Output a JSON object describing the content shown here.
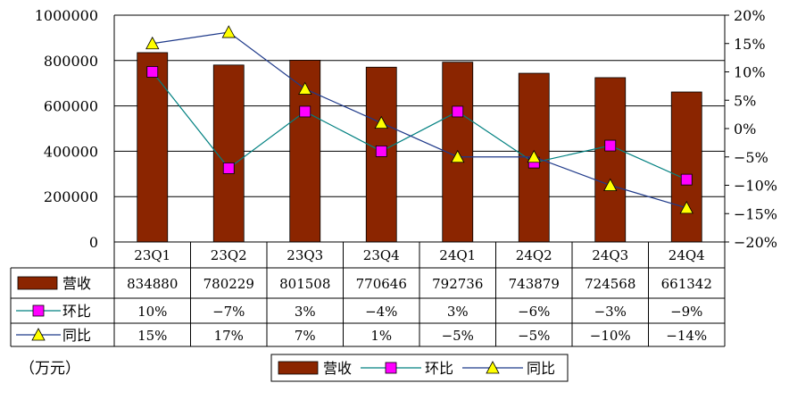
{
  "chart_data": {
    "type": "bar",
    "categories": [
      "23Q1",
      "23Q2",
      "23Q3",
      "23Q4",
      "24Q1",
      "24Q2",
      "24Q3",
      "24Q4"
    ],
    "series": [
      {
        "name": "营收",
        "kind": "bar",
        "axis": "left",
        "color": "#8B2500",
        "values": [
          834880,
          780229,
          801508,
          770646,
          792736,
          743879,
          724568,
          661342
        ],
        "labels": [
          "834880",
          "780229",
          "801508",
          "770646",
          "792736",
          "743879",
          "724568",
          "661342"
        ]
      },
      {
        "name": "环比",
        "kind": "line",
        "axis": "right",
        "color": "#008080",
        "marker_color": "#FF00FF",
        "marker": "square",
        "values": [
          10,
          -7,
          3,
          -4,
          3,
          -6,
          -3,
          -9
        ],
        "labels": [
          "10%",
          "−7%",
          "3%",
          "−4%",
          "3%",
          "−6%",
          "−3%",
          "−9%"
        ]
      },
      {
        "name": "同比",
        "kind": "line",
        "axis": "right",
        "color": "#1F3A8A",
        "marker_color": "#FFFF00",
        "marker": "triangle",
        "values": [
          15,
          17,
          7,
          1,
          -5,
          -5,
          -10,
          -14
        ],
        "labels": [
          "15%",
          "17%",
          "7%",
          "1%",
          "−5%",
          "−5%",
          "−10%",
          "−14%"
        ]
      }
    ],
    "left_axis": {
      "min": 0,
      "max": 1000000,
      "ticks": [
        "1000000",
        "800000",
        "600000",
        "400000",
        "200000",
        "0"
      ]
    },
    "right_axis": {
      "min": -20,
      "max": 20,
      "ticks": [
        "20%",
        "15%",
        "10%",
        "5%",
        "0%",
        "−5%",
        "−10%",
        "−15%",
        "−20%"
      ]
    },
    "unit_label": "（万元）",
    "legend": {
      "position": "bottom",
      "items": [
        "营收",
        "环比",
        "同比"
      ]
    },
    "data_table": true,
    "grid": "horizontal"
  }
}
